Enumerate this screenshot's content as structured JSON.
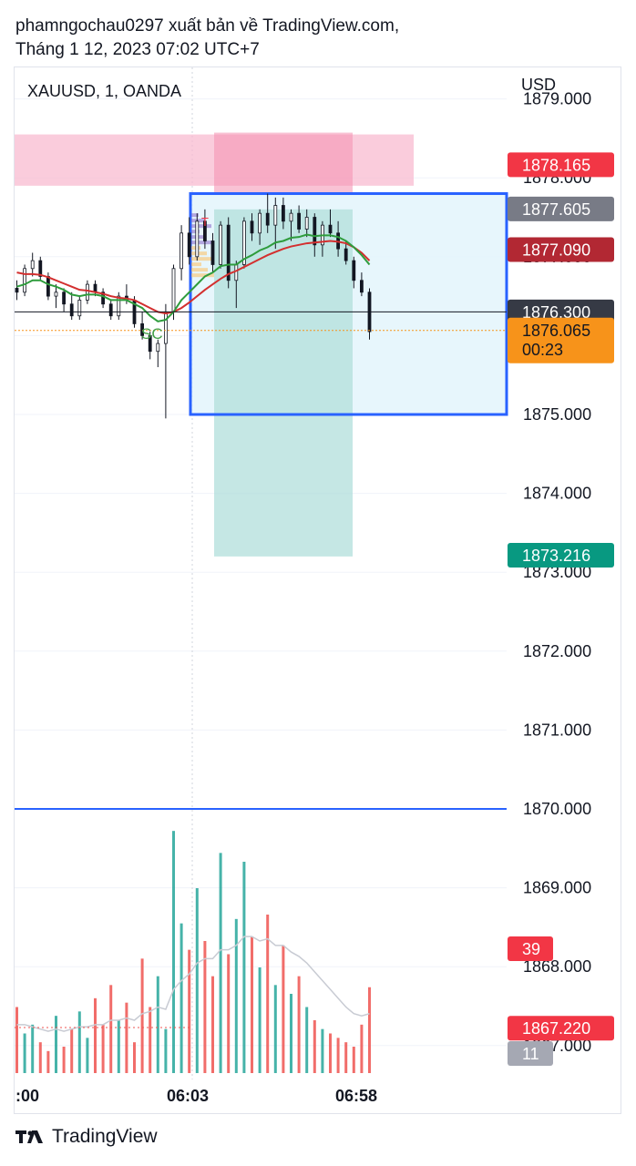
{
  "header": {
    "line1": "phamngochau0297 xuất bản về TradingView.com,",
    "line2": "Tháng 1 12, 2023 07:02 UTC+7"
  },
  "chart": {
    "symbol": "XAUUSD, 1, OANDA",
    "currency": "USD",
    "annotation": "SC",
    "marker_letter": "T",
    "colors": {
      "up": "#26a69a",
      "down": "#ef5350",
      "ema_green": "#2e9c3c",
      "ema_red": "#d32f2f",
      "position_border": "#2962ff",
      "target_fill": "#b2dfdb",
      "stop_fill": "#f8bbd0",
      "current_price": "#f7931a",
      "horizontal_line": "#2962ff"
    }
  },
  "chart_data": {
    "type": "candlestick",
    "title": "XAUUSD, 1, OANDA",
    "ylabel": "USD",
    "ylim": [
      1866.5,
      1879.2
    ],
    "y_ticks": [
      "1879.000",
      "1878.000",
      "1877.000",
      "1876.000",
      "1875.000",
      "1874.000",
      "1873.000",
      "1872.000",
      "1871.000",
      "1870.000",
      "1869.000",
      "1868.000",
      "1867.000"
    ],
    "x_ticks": [
      ":00",
      "06:03",
      "06:58"
    ],
    "price_labels": [
      {
        "value": "1878.165",
        "price": 1878.165,
        "color": "#f23645",
        "text_color": "#ffffff"
      },
      {
        "value": "1877.605",
        "price": 1877.605,
        "color": "#787b86",
        "text_color": "#ffffff"
      },
      {
        "value": "1877.090",
        "price": 1877.09,
        "color": "#b22833",
        "text_color": "#ffffff"
      },
      {
        "value": "1876.300",
        "price": 1876.3,
        "color": "#363a45",
        "text_color": "#ffffff"
      },
      {
        "value": "1876.065",
        "price": 1876.065,
        "color": "#f7931a",
        "text_color": "#131722",
        "countdown": "00:23"
      },
      {
        "value": "1873.216",
        "price": 1873.216,
        "color": "#089981",
        "text_color": "#ffffff"
      },
      {
        "value": "1867.220",
        "price": 1867.22,
        "color": "#f23645",
        "text_color": "#ffffff"
      }
    ],
    "volume_labels": [
      {
        "value": "39",
        "color": "#f23645"
      },
      {
        "value": "11",
        "color": "#a5a8b3"
      }
    ],
    "position": {
      "entry": 1875.0,
      "top": 1877.8,
      "target": 1873.2,
      "stop": 1878.55
    },
    "horizontal_line": 1870.0,
    "candles": [
      {
        "o": 1876.6,
        "h": 1876.7,
        "l": 1876.45,
        "c": 1876.55
      },
      {
        "o": 1876.55,
        "h": 1876.9,
        "l": 1876.5,
        "c": 1876.85
      },
      {
        "o": 1876.85,
        "h": 1877.05,
        "l": 1876.75,
        "c": 1876.95
      },
      {
        "o": 1876.95,
        "h": 1877.0,
        "l": 1876.7,
        "c": 1876.75
      },
      {
        "o": 1876.75,
        "h": 1876.8,
        "l": 1876.45,
        "c": 1876.5
      },
      {
        "o": 1876.5,
        "h": 1876.65,
        "l": 1876.35,
        "c": 1876.55
      },
      {
        "o": 1876.55,
        "h": 1876.6,
        "l": 1876.3,
        "c": 1876.4
      },
      {
        "o": 1876.4,
        "h": 1876.55,
        "l": 1876.2,
        "c": 1876.25
      },
      {
        "o": 1876.25,
        "h": 1876.5,
        "l": 1876.2,
        "c": 1876.45
      },
      {
        "o": 1876.45,
        "h": 1876.7,
        "l": 1876.4,
        "c": 1876.65
      },
      {
        "o": 1876.65,
        "h": 1876.7,
        "l": 1876.5,
        "c": 1876.55
      },
      {
        "o": 1876.55,
        "h": 1876.6,
        "l": 1876.35,
        "c": 1876.4
      },
      {
        "o": 1876.4,
        "h": 1876.45,
        "l": 1876.2,
        "c": 1876.25
      },
      {
        "o": 1876.25,
        "h": 1876.55,
        "l": 1876.2,
        "c": 1876.5
      },
      {
        "o": 1876.5,
        "h": 1876.65,
        "l": 1876.4,
        "c": 1876.45
      },
      {
        "o": 1876.45,
        "h": 1876.5,
        "l": 1876.1,
        "c": 1876.15
      },
      {
        "o": 1876.15,
        "h": 1876.3,
        "l": 1875.95,
        "c": 1876.0
      },
      {
        "o": 1876.0,
        "h": 1876.05,
        "l": 1875.7,
        "c": 1875.8
      },
      {
        "o": 1875.8,
        "h": 1875.95,
        "l": 1875.6,
        "c": 1875.9
      },
      {
        "o": 1875.9,
        "h": 1876.4,
        "l": 1874.95,
        "c": 1876.3
      },
      {
        "o": 1876.3,
        "h": 1876.9,
        "l": 1876.2,
        "c": 1876.85
      },
      {
        "o": 1876.85,
        "h": 1877.4,
        "l": 1876.7,
        "c": 1877.3
      },
      {
        "o": 1877.3,
        "h": 1877.5,
        "l": 1876.9,
        "c": 1877.0
      },
      {
        "o": 1877.0,
        "h": 1877.55,
        "l": 1876.95,
        "c": 1877.45
      },
      {
        "o": 1877.45,
        "h": 1877.6,
        "l": 1877.1,
        "c": 1877.2
      },
      {
        "o": 1877.2,
        "h": 1877.3,
        "l": 1876.8,
        "c": 1876.9
      },
      {
        "o": 1876.9,
        "h": 1877.45,
        "l": 1876.85,
        "c": 1877.4
      },
      {
        "o": 1877.4,
        "h": 1877.5,
        "l": 1876.6,
        "c": 1876.7
      },
      {
        "o": 1876.7,
        "h": 1876.95,
        "l": 1876.35,
        "c": 1876.9
      },
      {
        "o": 1876.9,
        "h": 1877.5,
        "l": 1876.85,
        "c": 1877.45
      },
      {
        "o": 1877.45,
        "h": 1877.55,
        "l": 1877.2,
        "c": 1877.3
      },
      {
        "o": 1877.3,
        "h": 1877.6,
        "l": 1877.15,
        "c": 1877.55
      },
      {
        "o": 1877.55,
        "h": 1877.8,
        "l": 1877.3,
        "c": 1877.4
      },
      {
        "o": 1877.4,
        "h": 1877.75,
        "l": 1877.1,
        "c": 1877.65
      },
      {
        "o": 1877.65,
        "h": 1877.75,
        "l": 1877.35,
        "c": 1877.45
      },
      {
        "o": 1877.45,
        "h": 1877.6,
        "l": 1877.2,
        "c": 1877.55
      },
      {
        "o": 1877.55,
        "h": 1877.65,
        "l": 1877.3,
        "c": 1877.35
      },
      {
        "o": 1877.35,
        "h": 1877.6,
        "l": 1877.25,
        "c": 1877.5
      },
      {
        "o": 1877.5,
        "h": 1877.55,
        "l": 1877.0,
        "c": 1877.15
      },
      {
        "o": 1877.15,
        "h": 1877.45,
        "l": 1877.0,
        "c": 1877.4
      },
      {
        "o": 1877.4,
        "h": 1877.6,
        "l": 1877.25,
        "c": 1877.3
      },
      {
        "o": 1877.3,
        "h": 1877.45,
        "l": 1877.0,
        "c": 1877.1
      },
      {
        "o": 1877.1,
        "h": 1877.2,
        "l": 1876.9,
        "c": 1876.95
      },
      {
        "o": 1876.95,
        "h": 1877.0,
        "l": 1876.6,
        "c": 1876.7
      },
      {
        "o": 1876.7,
        "h": 1876.8,
        "l": 1876.5,
        "c": 1876.55
      },
      {
        "o": 1876.55,
        "h": 1876.6,
        "l": 1875.95,
        "c": 1876.05
      }
    ],
    "ema_green": [
      1876.62,
      1876.65,
      1876.7,
      1876.7,
      1876.65,
      1876.62,
      1876.58,
      1876.52,
      1876.5,
      1876.52,
      1876.52,
      1876.5,
      1876.45,
      1876.45,
      1876.45,
      1876.4,
      1876.35,
      1876.25,
      1876.18,
      1876.2,
      1876.3,
      1876.45,
      1876.55,
      1876.65,
      1876.75,
      1876.8,
      1876.88,
      1876.9,
      1876.9,
      1876.97,
      1877.02,
      1877.08,
      1877.12,
      1877.18,
      1877.2,
      1877.24,
      1877.25,
      1877.28,
      1877.26,
      1877.27,
      1877.27,
      1877.25,
      1877.2,
      1877.12,
      1877.02,
      1876.9
    ],
    "ema_red": [
      1876.8,
      1876.78,
      1876.78,
      1876.77,
      1876.74,
      1876.7,
      1876.66,
      1876.62,
      1876.58,
      1876.57,
      1876.55,
      1876.53,
      1876.5,
      1876.48,
      1876.47,
      1876.45,
      1876.4,
      1876.35,
      1876.3,
      1876.28,
      1876.3,
      1876.35,
      1876.42,
      1876.5,
      1876.58,
      1876.65,
      1876.72,
      1876.78,
      1876.82,
      1876.87,
      1876.92,
      1876.97,
      1877.02,
      1877.06,
      1877.1,
      1877.13,
      1877.15,
      1877.17,
      1877.18,
      1877.19,
      1877.2,
      1877.19,
      1877.17,
      1877.12,
      1877.05,
      1876.95
    ],
    "volumes": [
      30,
      18,
      22,
      14,
      10,
      26,
      12,
      20,
      28,
      16,
      34,
      22,
      40,
      24,
      32,
      14,
      52,
      30,
      44,
      20,
      110,
      68,
      56,
      84,
      60,
      44,
      100,
      54,
      70,
      96,
      62,
      48,
      72,
      40,
      58,
      36,
      44,
      30,
      24,
      20,
      18,
      16,
      14,
      12,
      22,
      39
    ],
    "volume_ma": [
      22,
      22,
      21,
      20,
      19,
      20,
      19,
      20,
      21,
      21,
      22,
      22,
      24,
      24,
      25,
      24,
      27,
      28,
      30,
      29,
      38,
      42,
      45,
      50,
      52,
      52,
      56,
      56,
      58,
      62,
      62,
      60,
      61,
      58,
      58,
      55,
      53,
      50,
      46,
      42,
      38,
      34,
      30,
      27,
      26,
      27
    ],
    "volume_max": 120
  }
}
